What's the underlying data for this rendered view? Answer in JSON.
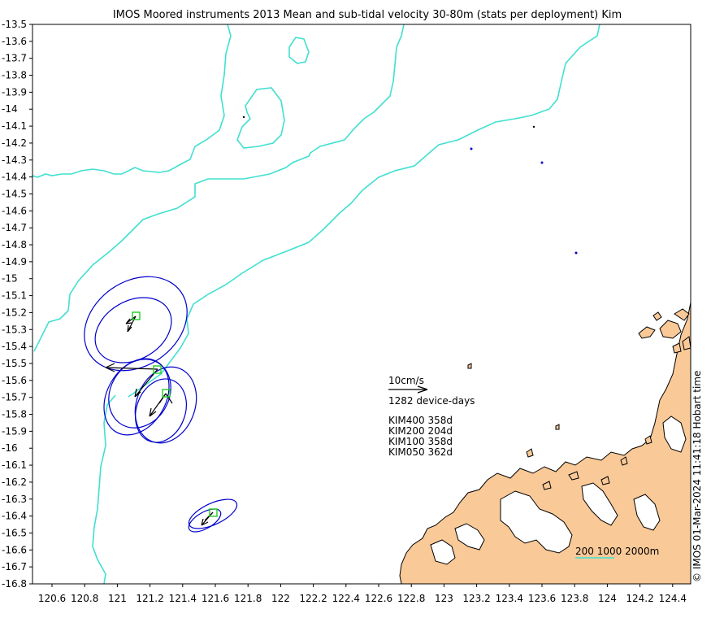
{
  "title": "IMOS Moored instruments 2013 Mean and sub-tidal velocity 30-80m (stats per deployment) Kim",
  "credit": "© IMOS 01-Mar-2024 11:41:18 Hobart time",
  "colors": {
    "bathymetry": "#40e0d0",
    "land": "#f9c998",
    "coast": "#000000",
    "ellipse": "#0000cc",
    "station": "#22cc22",
    "arrow": "#000000",
    "island_dots": "#0000cc"
  },
  "x_ticks": [
    "120.6",
    "120.8",
    "121",
    "121.2",
    "121.4",
    "121.6",
    "121.8",
    "122",
    "122.2",
    "122.4",
    "122.6",
    "122.8",
    "123",
    "123.2",
    "123.4",
    "123.6",
    "123.8",
    "124",
    "124.2",
    "124.4"
  ],
  "y_ticks": [
    "-13.5",
    "-13.6",
    "-13.7",
    "-13.8",
    "-13.9",
    "-14",
    "-14.1",
    "-14.2",
    "-14.3",
    "-14.4",
    "-14.5",
    "-14.6",
    "-14.7",
    "-14.8",
    "-14.9",
    "-15",
    "-15.1",
    "-15.2",
    "-15.3",
    "-15.4",
    "-15.5",
    "-15.6",
    "-15.7",
    "-15.8",
    "-15.9",
    "-16",
    "-16.1",
    "-16.2",
    "-16.3",
    "-16.4",
    "-16.5",
    "-16.6",
    "-16.7",
    "-16.8"
  ],
  "legend": {
    "scale_label": "10cm/s",
    "device_days": "1282 device-days",
    "deployments": [
      "KIM400 358d",
      "KIM200 204d",
      "KIM100 358d",
      "KIM050 362d"
    ],
    "isobaths_label": "200 1000 2000m"
  },
  "chart_data": {
    "type": "map",
    "xlim": [
      120.5,
      124.5
    ],
    "ylim": [
      -16.8,
      -13.5
    ],
    "vector_scale_cm_s": 10,
    "stations": [
      {
        "name": "KIM400",
        "lon": 121.1,
        "lat": -15.22
      },
      {
        "name": "KIM200",
        "lon": 121.24,
        "lat": -15.53
      },
      {
        "name": "KIM100",
        "lon": 121.28,
        "lat": -15.67
      },
      {
        "name": "KIM050",
        "lon": 121.59,
        "lat": -16.38
      }
    ]
  }
}
